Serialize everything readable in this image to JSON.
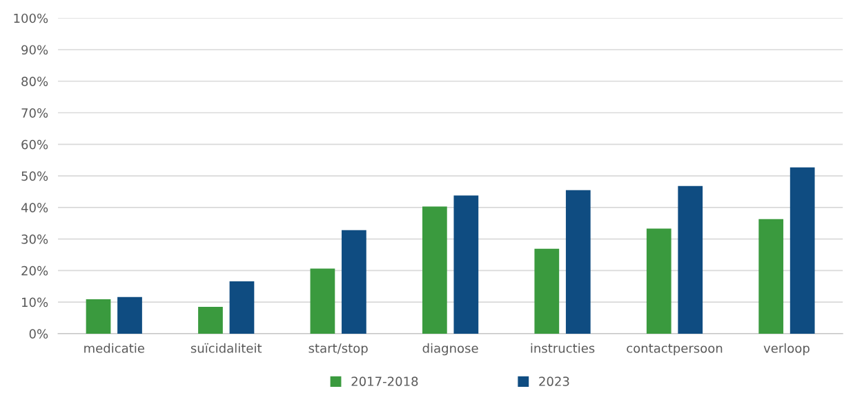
{
  "chart_data": {
    "type": "bar",
    "categories": [
      "medicatie",
      "suïcidaliteit",
      "start/stop",
      "diagnose",
      "instructies",
      "contactpersoon",
      "verloop"
    ],
    "series": [
      {
        "name": "2017-2018",
        "color": "#3a9a3e",
        "values": [
          10.9,
          8.5,
          20.6,
          40.3,
          26.9,
          33.3,
          36.3
        ]
      },
      {
        "name": "2023",
        "color": "#0f4c81",
        "values": [
          11.6,
          16.6,
          32.8,
          43.8,
          45.5,
          46.8,
          52.7
        ]
      }
    ],
    "ylim": [
      0,
      100
    ],
    "yticks": [
      {
        "value": 0,
        "label": "0%"
      },
      {
        "value": 10,
        "label": "10%"
      },
      {
        "value": 20,
        "label": "20%"
      },
      {
        "value": 30,
        "label": "30%"
      },
      {
        "value": 40,
        "label": "40%"
      },
      {
        "value": 50,
        "label": "50%"
      },
      {
        "value": 60,
        "label": "60%"
      },
      {
        "value": 70,
        "label": "70%"
      },
      {
        "value": 80,
        "label": "80%"
      },
      {
        "value": 90,
        "label": "90%"
      },
      {
        "value": 100,
        "label": "100%"
      }
    ],
    "grid": "y",
    "legend": "bottom"
  }
}
